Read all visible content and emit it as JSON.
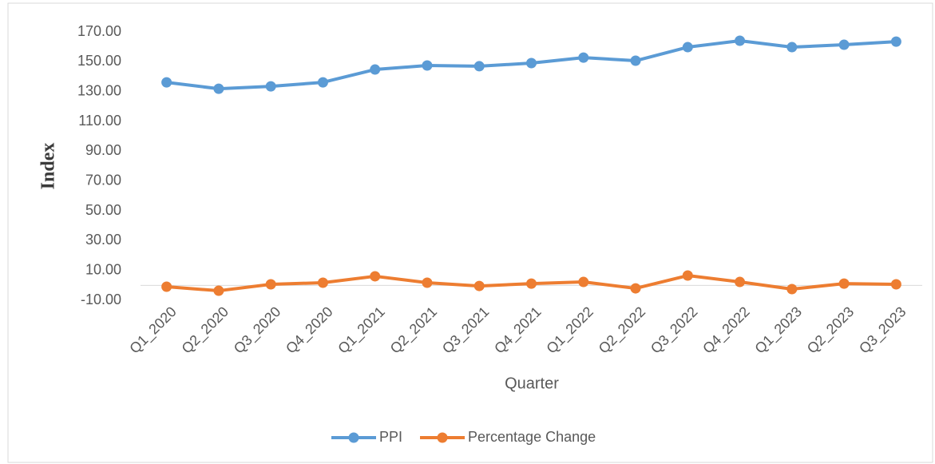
{
  "chart_data": {
    "type": "line",
    "y_label": "Index",
    "x_label": "Quarter",
    "categories": [
      "Q1_2020",
      "Q2_2020",
      "Q3_2020",
      "Q4_2020",
      "Q1_2021",
      "Q2_2021",
      "Q3_2021",
      "Q4_2021",
      "Q1_2022",
      "Q2_2022",
      "Q3_2022",
      "Q4_2022",
      "Q1_2023",
      "Q2_2023",
      "Q3_2023"
    ],
    "series": [
      {
        "name": "PPI",
        "color": "#5b9bd5",
        "values": [
          136.2,
          131.9,
          133.5,
          136.2,
          144.8,
          147.5,
          147.0,
          149.1,
          152.8,
          150.7,
          159.8,
          164.1,
          159.8,
          161.4,
          163.5
        ]
      },
      {
        "name": "Percentage Change",
        "color": "#ed7d31",
        "values": [
          -0.9,
          -3.6,
          0.7,
          1.8,
          6.1,
          1.8,
          -0.4,
          1.2,
          2.3,
          -2.0,
          6.6,
          2.3,
          -2.5,
          1.2,
          0.7
        ]
      }
    ],
    "ylim": [
      -10,
      170
    ],
    "yticks": [
      {
        "value": -10,
        "label": "-10.00"
      },
      {
        "value": 10,
        "label": "10.00"
      },
      {
        "value": 30,
        "label": "30.00"
      },
      {
        "value": 50,
        "label": "50.00"
      },
      {
        "value": 70,
        "label": "70.00"
      },
      {
        "value": 90,
        "label": "90.00"
      },
      {
        "value": 110,
        "label": "110.00"
      },
      {
        "value": 130,
        "label": "130.00"
      },
      {
        "value": 150,
        "label": "150.00"
      },
      {
        "value": 170,
        "label": "170.00"
      }
    ],
    "grid": false,
    "legend": "bottom"
  }
}
